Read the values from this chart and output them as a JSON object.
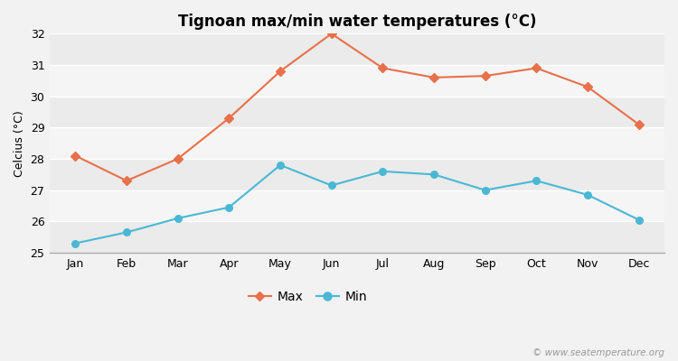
{
  "title": "Tignoan max/min water temperatures (°C)",
  "ylabel": "Celcius (°C)",
  "months": [
    "Jan",
    "Feb",
    "Mar",
    "Apr",
    "May",
    "Jun",
    "Jul",
    "Aug",
    "Sep",
    "Oct",
    "Nov",
    "Dec"
  ],
  "max_temps": [
    28.1,
    27.3,
    28.0,
    29.3,
    30.8,
    32.0,
    30.9,
    30.6,
    30.65,
    30.9,
    30.3,
    29.1
  ],
  "min_temps": [
    25.3,
    25.65,
    26.1,
    26.45,
    27.8,
    27.15,
    27.6,
    27.5,
    27.0,
    27.3,
    26.85,
    26.05
  ],
  "max_color": "#e8704a",
  "min_color": "#4ab8d4",
  "bg_color": "#f2f2f2",
  "band_colors": [
    "#ebebeb",
    "#f5f5f5"
  ],
  "grid_color": "#ffffff",
  "ylim": [
    25,
    32
  ],
  "yticks": [
    25,
    26,
    27,
    28,
    29,
    30,
    31,
    32
  ],
  "legend_max": "Max",
  "legend_min": "Min",
  "watermark": "© www.seatemperature.org",
  "title_fontsize": 12,
  "label_fontsize": 9,
  "tick_fontsize": 9,
  "watermark_fontsize": 7.5
}
